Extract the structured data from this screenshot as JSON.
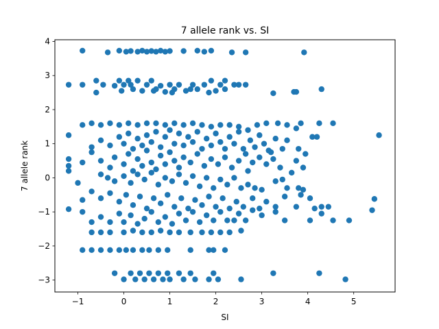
{
  "chart_data": {
    "type": "scatter",
    "title": "7 allele rank vs. SI",
    "xlabel": "SI",
    "ylabel": "7 allele rank",
    "xlim": [
      -1.5,
      5.9
    ],
    "ylim": [
      -3.35,
      4.05
    ],
    "xticks": [
      "−1",
      "0",
      "1",
      "2",
      "3",
      "4",
      "5"
    ],
    "xtick_values": [
      -1,
      0,
      1,
      2,
      3,
      4,
      5
    ],
    "yticks": [
      "−3",
      "−2",
      "−1",
      "0",
      "1",
      "2",
      "3",
      "4"
    ],
    "ytick_values": [
      -3,
      -2,
      -1,
      0,
      1,
      2,
      3,
      4
    ],
    "grid": false,
    "marker_color": "#1f77b4",
    "points": [
      [
        -0.9,
        3.73
      ],
      [
        -0.35,
        3.68
      ],
      [
        -0.1,
        3.73
      ],
      [
        0.05,
        3.7
      ],
      [
        0.15,
        3.72
      ],
      [
        0.3,
        3.7
      ],
      [
        0.4,
        3.73
      ],
      [
        0.5,
        3.7
      ],
      [
        0.6,
        3.72
      ],
      [
        0.7,
        3.7
      ],
      [
        0.8,
        3.73
      ],
      [
        0.9,
        3.7
      ],
      [
        1.0,
        3.72
      ],
      [
        1.3,
        3.72
      ],
      [
        1.6,
        3.73
      ],
      [
        1.75,
        3.7
      ],
      [
        1.9,
        3.73
      ],
      [
        2.35,
        3.68
      ],
      [
        2.65,
        3.68
      ],
      [
        3.92,
        3.68
      ],
      [
        -1.2,
        2.73
      ],
      [
        -0.9,
        2.73
      ],
      [
        -0.6,
        2.85
      ],
      [
        -0.45,
        2.73
      ],
      [
        -0.6,
        2.5
      ],
      [
        -0.2,
        2.7
      ],
      [
        -0.1,
        2.85
      ],
      [
        0.0,
        2.73
      ],
      [
        0.1,
        2.85
      ],
      [
        0.2,
        2.6
      ],
      [
        0.3,
        2.85
      ],
      [
        0.4,
        2.55
      ],
      [
        0.5,
        2.73
      ],
      [
        0.6,
        2.85
      ],
      [
        0.7,
        2.6
      ],
      [
        0.8,
        2.7
      ],
      [
        0.9,
        2.52
      ],
      [
        1.0,
        2.73
      ],
      [
        1.1,
        2.6
      ],
      [
        1.2,
        2.73
      ],
      [
        1.35,
        2.55
      ],
      [
        1.5,
        2.73
      ],
      [
        1.6,
        2.6
      ],
      [
        1.75,
        2.73
      ],
      [
        1.9,
        2.85
      ],
      [
        2.0,
        2.55
      ],
      [
        2.1,
        2.73
      ],
      [
        2.2,
        2.6
      ],
      [
        2.4,
        2.73
      ],
      [
        2.5,
        2.73
      ],
      [
        2.65,
        2.73
      ],
      [
        3.25,
        2.48
      ],
      [
        3.7,
        2.52
      ],
      [
        3.75,
        2.52
      ],
      [
        4.3,
        2.6
      ],
      [
        -0.05,
        2.55
      ],
      [
        0.15,
        2.73
      ],
      [
        0.65,
        2.55
      ],
      [
        1.05,
        2.5
      ],
      [
        1.45,
        2.6
      ],
      [
        1.85,
        2.5
      ],
      [
        2.2,
        2.85
      ],
      [
        -1.2,
        1.25
      ],
      [
        -0.9,
        1.55
      ],
      [
        -0.7,
        1.6
      ],
      [
        -0.5,
        1.55
      ],
      [
        -0.3,
        1.6
      ],
      [
        -0.1,
        1.55
      ],
      [
        0.1,
        1.6
      ],
      [
        0.3,
        1.55
      ],
      [
        0.5,
        1.6
      ],
      [
        0.7,
        1.6
      ],
      [
        0.9,
        1.55
      ],
      [
        1.1,
        1.6
      ],
      [
        1.3,
        1.55
      ],
      [
        1.5,
        1.6
      ],
      [
        1.7,
        1.55
      ],
      [
        1.9,
        1.5
      ],
      [
        2.1,
        1.55
      ],
      [
        2.3,
        1.55
      ],
      [
        2.5,
        1.5
      ],
      [
        2.7,
        1.4
      ],
      [
        2.9,
        1.55
      ],
      [
        3.1,
        1.6
      ],
      [
        3.35,
        1.6
      ],
      [
        3.55,
        1.55
      ],
      [
        3.75,
        1.45
      ],
      [
        3.85,
        1.6
      ],
      [
        4.25,
        1.6
      ],
      [
        4.55,
        1.6
      ],
      [
        4.1,
        1.2
      ],
      [
        4.2,
        1.2
      ],
      [
        5.55,
        1.25
      ],
      [
        -0.7,
        0.9
      ],
      [
        -0.5,
        1.1
      ],
      [
        -0.3,
        0.95
      ],
      [
        -0.1,
        1.2
      ],
      [
        0.0,
        1.0
      ],
      [
        0.1,
        1.3
      ],
      [
        0.2,
        0.85
      ],
      [
        0.3,
        1.15
      ],
      [
        0.4,
        0.95
      ],
      [
        0.5,
        1.25
      ],
      [
        0.6,
        1.05
      ],
      [
        0.7,
        1.35
      ],
      [
        0.8,
        0.9
      ],
      [
        0.9,
        1.2
      ],
      [
        1.0,
        1.4
      ],
      [
        1.1,
        1.0
      ],
      [
        1.2,
        1.3
      ],
      [
        1.3,
        0.95
      ],
      [
        1.4,
        1.2
      ],
      [
        1.5,
        1.05
      ],
      [
        1.6,
        1.35
      ],
      [
        1.7,
        0.85
      ],
      [
        1.8,
        1.15
      ],
      [
        1.9,
        0.95
      ],
      [
        2.0,
        1.3
      ],
      [
        2.1,
        1.05
      ],
      [
        2.2,
        0.85
      ],
      [
        2.3,
        1.2
      ],
      [
        2.4,
        1.0
      ],
      [
        2.5,
        1.35
      ],
      [
        2.6,
        0.85
      ],
      [
        2.75,
        1.1
      ],
      [
        2.85,
        0.9
      ],
      [
        2.95,
        1.25
      ],
      [
        3.05,
        1.0
      ],
      [
        3.15,
        0.8
      ],
      [
        3.3,
        1.15
      ],
      [
        3.45,
        0.85
      ],
      [
        3.55,
        1.1
      ],
      [
        3.8,
        0.85
      ],
      [
        3.95,
        0.7
      ],
      [
        -1.2,
        0.55
      ],
      [
        -1.2,
        0.35
      ],
      [
        -0.9,
        0.45
      ],
      [
        -0.7,
        0.75
      ],
      [
        -0.5,
        0.5
      ],
      [
        -0.3,
        0.3
      ],
      [
        -0.2,
        0.6
      ],
      [
        0.0,
        0.4
      ],
      [
        0.1,
        0.7
      ],
      [
        0.2,
        0.2
      ],
      [
        0.3,
        0.55
      ],
      [
        0.4,
        0.35
      ],
      [
        0.5,
        0.8
      ],
      [
        0.6,
        0.45
      ],
      [
        0.7,
        0.25
      ],
      [
        0.8,
        0.65
      ],
      [
        0.9,
        0.4
      ],
      [
        1.0,
        0.75
      ],
      [
        1.1,
        0.5
      ],
      [
        1.2,
        0.3
      ],
      [
        1.3,
        0.6
      ],
      [
        1.45,
        0.45
      ],
      [
        1.6,
        0.7
      ],
      [
        1.75,
        0.35
      ],
      [
        1.9,
        0.55
      ],
      [
        2.05,
        0.4
      ],
      [
        2.2,
        0.6
      ],
      [
        2.35,
        0.3
      ],
      [
        2.5,
        0.5
      ],
      [
        2.65,
        0.7
      ],
      [
        2.8,
        0.45
      ],
      [
        2.95,
        0.6
      ],
      [
        3.1,
        0.4
      ],
      [
        3.25,
        0.55
      ],
      [
        3.4,
        0.3
      ],
      [
        3.65,
        0.15
      ],
      [
        3.75,
        0.5
      ],
      [
        3.9,
        0.3
      ],
      [
        3.2,
        0.75
      ],
      [
        2.7,
        0.2
      ],
      [
        -1.2,
        0.2
      ],
      [
        -0.5,
        0.1
      ],
      [
        -0.35,
        0.0
      ],
      [
        -0.2,
        -0.1
      ],
      [
        0.0,
        0.05
      ],
      [
        0.15,
        -0.15
      ],
      [
        0.3,
        0.1
      ],
      [
        0.45,
        -0.05
      ],
      [
        0.6,
        0.15
      ],
      [
        0.75,
        -0.2
      ],
      [
        0.9,
        0.0
      ],
      [
        1.05,
        -0.1
      ],
      [
        1.2,
        0.1
      ],
      [
        1.35,
        -0.15
      ],
      [
        1.5,
        0.05
      ],
      [
        1.65,
        -0.25
      ],
      [
        1.8,
        0.0
      ],
      [
        1.95,
        -0.3
      ],
      [
        2.1,
        -0.05
      ],
      [
        2.25,
        -0.2
      ],
      [
        2.4,
        0.0
      ],
      [
        2.55,
        -0.3
      ],
      [
        2.7,
        -0.2
      ],
      [
        2.85,
        -0.3
      ],
      [
        3.0,
        -0.35
      ],
      [
        3.3,
        -0.1
      ],
      [
        3.55,
        -0.3
      ],
      [
        3.8,
        -0.3
      ],
      [
        3.9,
        -0.35
      ],
      [
        3.45,
        -0.05
      ],
      [
        -1.0,
        -0.15
      ],
      [
        -0.7,
        -0.4
      ],
      [
        -0.5,
        -0.6
      ],
      [
        -0.3,
        -0.45
      ],
      [
        -0.1,
        -0.7
      ],
      [
        0.05,
        -0.5
      ],
      [
        0.2,
        -0.8
      ],
      [
        0.35,
        -0.55
      ],
      [
        0.5,
        -0.9
      ],
      [
        0.65,
        -0.6
      ],
      [
        0.8,
        -0.75
      ],
      [
        0.95,
        -0.5
      ],
      [
        1.1,
        -0.85
      ],
      [
        1.25,
        -0.6
      ],
      [
        1.4,
        -0.9
      ],
      [
        1.55,
        -0.65
      ],
      [
        1.7,
        -0.8
      ],
      [
        1.85,
        -0.55
      ],
      [
        2.0,
        -0.85
      ],
      [
        2.15,
        -0.6
      ],
      [
        2.3,
        -0.9
      ],
      [
        2.45,
        -0.7
      ],
      [
        2.6,
        -0.85
      ],
      [
        2.8,
        -0.6
      ],
      [
        2.95,
        -0.9
      ],
      [
        3.1,
        -0.7
      ],
      [
        3.3,
        -0.85
      ],
      [
        3.5,
        -0.55
      ],
      [
        3.75,
        -0.85
      ],
      [
        3.85,
        -0.5
      ],
      [
        4.05,
        -0.6
      ],
      [
        4.15,
        -0.9
      ],
      [
        4.3,
        -0.85
      ],
      [
        4.45,
        -0.85
      ],
      [
        5.4,
        -0.95
      ],
      [
        5.45,
        -0.62
      ],
      [
        -1.2,
        -0.92
      ],
      [
        -0.9,
        -0.65
      ],
      [
        -0.9,
        -1.0
      ],
      [
        -0.7,
        -1.3
      ],
      [
        -0.5,
        -1.15
      ],
      [
        -0.3,
        -1.3
      ],
      [
        -0.1,
        -1.05
      ],
      [
        0.0,
        -1.3
      ],
      [
        0.15,
        -1.1
      ],
      [
        0.3,
        -1.35
      ],
      [
        0.45,
        -1.2
      ],
      [
        0.6,
        -1.0
      ],
      [
        0.75,
        -1.3
      ],
      [
        0.9,
        -1.15
      ],
      [
        1.05,
        -1.35
      ],
      [
        1.2,
        -1.05
      ],
      [
        1.35,
        -1.25
      ],
      [
        1.5,
        -1.0
      ],
      [
        1.65,
        -1.3
      ],
      [
        1.8,
        -1.1
      ],
      [
        1.95,
        -1.25
      ],
      [
        2.1,
        -1.0
      ],
      [
        2.25,
        -1.25
      ],
      [
        2.4,
        -1.25
      ],
      [
        2.5,
        -1.05
      ],
      [
        2.65,
        -1.25
      ],
      [
        2.8,
        -0.95
      ],
      [
        3.0,
        -1.1
      ],
      [
        3.3,
        -1.0
      ],
      [
        3.5,
        -1.25
      ],
      [
        4.05,
        -1.25
      ],
      [
        4.55,
        -1.25
      ],
      [
        4.9,
        -1.25
      ],
      [
        4.3,
        -1.05
      ],
      [
        -0.7,
        -1.6
      ],
      [
        -0.5,
        -1.6
      ],
      [
        -0.3,
        -1.6
      ],
      [
        0.0,
        -1.6
      ],
      [
        0.2,
        -1.55
      ],
      [
        0.4,
        -1.6
      ],
      [
        0.6,
        -1.6
      ],
      [
        0.8,
        -1.55
      ],
      [
        1.0,
        -1.6
      ],
      [
        1.2,
        -1.6
      ],
      [
        1.45,
        -1.6
      ],
      [
        1.7,
        -1.6
      ],
      [
        1.9,
        -1.6
      ],
      [
        2.1,
        -1.6
      ],
      [
        2.3,
        -1.6
      ],
      [
        2.55,
        -1.55
      ],
      [
        -0.9,
        -2.12
      ],
      [
        -0.7,
        -2.12
      ],
      [
        -0.5,
        -2.12
      ],
      [
        -0.3,
        -2.12
      ],
      [
        -0.1,
        -2.12
      ],
      [
        0.05,
        -2.12
      ],
      [
        0.2,
        -2.12
      ],
      [
        0.4,
        -2.12
      ],
      [
        0.55,
        -2.12
      ],
      [
        0.75,
        -2.12
      ],
      [
        0.95,
        -2.12
      ],
      [
        1.45,
        -2.12
      ],
      [
        1.85,
        -2.12
      ],
      [
        1.95,
        -2.12
      ],
      [
        2.2,
        -2.12
      ],
      [
        -0.2,
        -2.8
      ],
      [
        0.0,
        -2.98
      ],
      [
        0.15,
        -2.8
      ],
      [
        0.25,
        -2.98
      ],
      [
        0.35,
        -2.8
      ],
      [
        0.45,
        -2.98
      ],
      [
        0.55,
        -2.8
      ],
      [
        0.65,
        -2.98
      ],
      [
        0.75,
        -2.8
      ],
      [
        0.85,
        -2.98
      ],
      [
        0.95,
        -2.8
      ],
      [
        1.0,
        -2.98
      ],
      [
        1.2,
        -2.8
      ],
      [
        1.3,
        -2.98
      ],
      [
        1.45,
        -2.8
      ],
      [
        1.55,
        -2.98
      ],
      [
        1.85,
        -2.98
      ],
      [
        1.95,
        -2.8
      ],
      [
        2.05,
        -2.98
      ],
      [
        2.55,
        -2.98
      ],
      [
        3.25,
        -2.8
      ],
      [
        4.25,
        -2.8
      ],
      [
        4.82,
        -2.98
      ]
    ]
  }
}
